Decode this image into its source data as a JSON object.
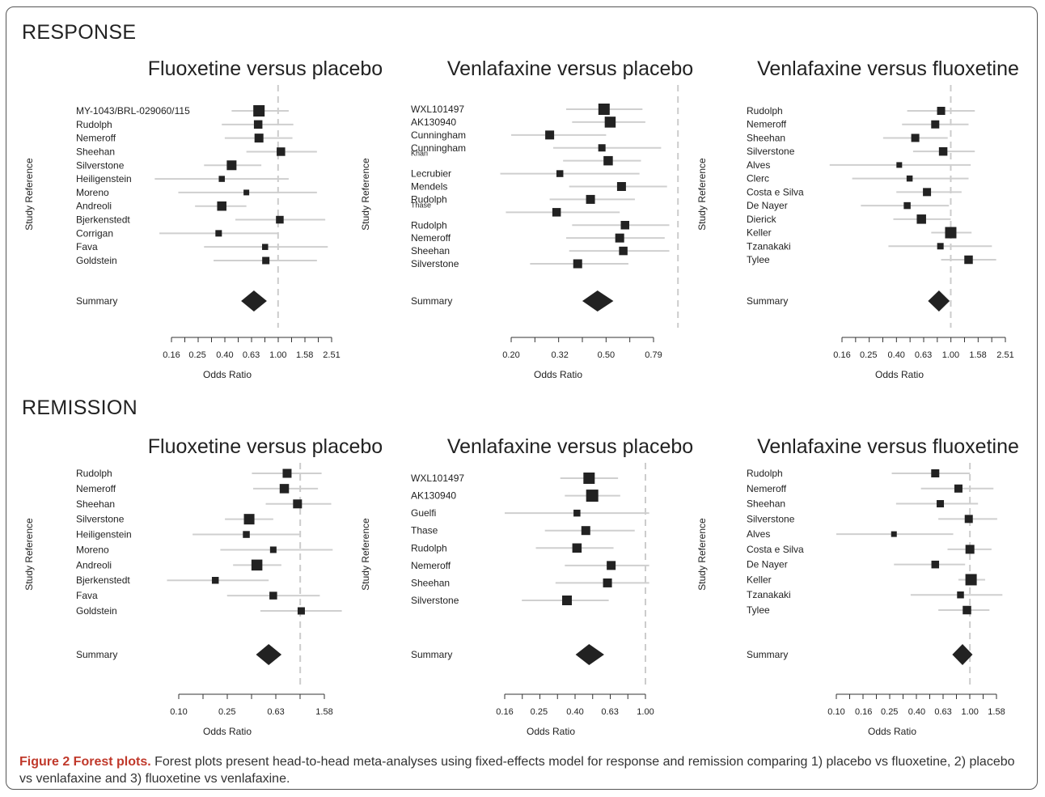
{
  "sections": [
    {
      "title": "RESPONSE"
    },
    {
      "title": "REMISSION"
    }
  ],
  "caption": {
    "label": "Figure 2 Forest plots.",
    "text": " Forest plots present head-to-head meta-analyses using fixed-effects model for response and remission comparing 1) placebo vs fluoxetine, 2) placebo vs venlafaxine and 3) fluoxetine vs venlafaxine."
  },
  "colors": {
    "marker": "#222222",
    "ci_line": "#cfcfcf",
    "ref_line": "#cccccc",
    "text": "#222222"
  },
  "chart_data": [
    {
      "type": "forest",
      "section": "RESPONSE",
      "title": "Fluoxetine versus placebo",
      "ylabel": "Study Reference",
      "xlabel": "Odds Ratio",
      "scale": "log",
      "x_ticks": [
        "0.16",
        "0.25",
        "0.40",
        "0.63",
        "1.00",
        "1.58",
        "2.51"
      ],
      "studies": [
        {
          "label": "MY-1043/BRL-029060/115",
          "or": 0.72,
          "lo": 0.45,
          "hi": 1.2,
          "weight": 1.0
        },
        {
          "label": "Rudolph",
          "or": 0.71,
          "lo": 0.38,
          "hi": 1.3,
          "weight": 0.65
        },
        {
          "label": "Nemeroff",
          "or": 0.72,
          "lo": 0.4,
          "hi": 1.28,
          "weight": 0.7
        },
        {
          "label": "Sheehan",
          "or": 1.05,
          "lo": 0.58,
          "hi": 1.95,
          "weight": 0.65
        },
        {
          "label": "Silverstone",
          "or": 0.45,
          "lo": 0.28,
          "hi": 0.75,
          "weight": 0.8
        },
        {
          "label": "Heiligenstein",
          "or": 0.38,
          "lo": 0.12,
          "hi": 1.2,
          "weight": 0.35
        },
        {
          "label": "Moreno",
          "or": 0.58,
          "lo": 0.18,
          "hi": 1.95,
          "weight": 0.3
        },
        {
          "label": "Andreoli",
          "or": 0.38,
          "lo": 0.24,
          "hi": 0.58,
          "weight": 0.75
        },
        {
          "label": "Bjerkenstedt",
          "or": 1.03,
          "lo": 0.48,
          "hi": 2.25,
          "weight": 0.55
        },
        {
          "label": "Corrigan",
          "or": 0.36,
          "lo": 0.13,
          "hi": 1.0,
          "weight": 0.4
        },
        {
          "label": "Fava",
          "or": 0.8,
          "lo": 0.28,
          "hi": 2.35,
          "weight": 0.35
        },
        {
          "label": "Goldstein",
          "or": 0.81,
          "lo": 0.33,
          "hi": 1.95,
          "weight": 0.5
        }
      ],
      "summary": {
        "label": "Summary",
        "or": 0.66,
        "lo": 0.56,
        "hi": 0.78
      }
    },
    {
      "type": "forest",
      "section": "RESPONSE",
      "title": "Venlafaxine versus placebo",
      "ylabel": "Study Reference",
      "xlabel": "Odds Ratio",
      "scale": "log",
      "x_ticks": [
        "0.20",
        "0.32",
        "0.50",
        "0.79"
      ],
      "studies": [
        {
          "label": "WXL101497",
          "or": 0.49,
          "lo": 0.34,
          "hi": 0.71,
          "weight": 1.0
        },
        {
          "label": "AK130940",
          "or": 0.52,
          "lo": 0.36,
          "hi": 0.73,
          "weight": 0.95
        },
        {
          "label": "Cunningham",
          "or": 0.29,
          "lo": 0.2,
          "hi": 0.5,
          "weight": 0.7
        },
        {
          "label": "Cunningham",
          "or": 0.48,
          "lo": 0.3,
          "hi": 0.85,
          "weight": 0.5
        },
        {
          "label": "Khan",
          "or": 0.51,
          "lo": 0.33,
          "hi": 0.7,
          "weight": 0.75
        },
        {
          "label": "Lecrubier",
          "or": 0.32,
          "lo": 0.18,
          "hi": 0.69,
          "weight": 0.45
        },
        {
          "label": "Mendels",
          "or": 0.58,
          "lo": 0.35,
          "hi": 0.9,
          "weight": 0.7
        },
        {
          "label": "Rudolph",
          "or": 0.43,
          "lo": 0.29,
          "hi": 0.66,
          "weight": 0.7
        },
        {
          "label": "Thase",
          "or": 0.31,
          "lo": 0.19,
          "hi": 0.57,
          "weight": 0.65
        },
        {
          "label": "Rudolph",
          "or": 0.6,
          "lo": 0.36,
          "hi": 0.92,
          "weight": 0.65
        },
        {
          "label": "Nemeroff",
          "or": 0.57,
          "lo": 0.34,
          "hi": 0.88,
          "weight": 0.7
        },
        {
          "label": "Sheehan",
          "or": 0.59,
          "lo": 0.35,
          "hi": 0.92,
          "weight": 0.65
        },
        {
          "label": "Silverstone",
          "or": 0.38,
          "lo": 0.24,
          "hi": 0.62,
          "weight": 0.7
        }
      ],
      "summary": {
        "label": "Summary",
        "or": 0.46,
        "lo": 0.41,
        "hi": 0.52
      }
    },
    {
      "type": "forest",
      "section": "RESPONSE",
      "title": "Venlafaxine versus fluoxetine",
      "ylabel": "Study Reference",
      "xlabel": "Odds Ratio",
      "scale": "log",
      "x_ticks": [
        "0.16",
        "0.25",
        "0.40",
        "0.63",
        "1.00",
        "1.58",
        "2.51"
      ],
      "studies": [
        {
          "label": "Rudolph",
          "or": 0.85,
          "lo": 0.48,
          "hi": 1.5,
          "weight": 0.6
        },
        {
          "label": "Nemeroff",
          "or": 0.77,
          "lo": 0.44,
          "hi": 1.35,
          "weight": 0.6
        },
        {
          "label": "Sheehan",
          "or": 0.55,
          "lo": 0.32,
          "hi": 0.95,
          "weight": 0.6
        },
        {
          "label": "Silverstone",
          "or": 0.88,
          "lo": 0.53,
          "hi": 1.5,
          "weight": 0.65
        },
        {
          "label": "Alves",
          "or": 0.42,
          "lo": 0.13,
          "hi": 1.4,
          "weight": 0.3
        },
        {
          "label": "Clerc",
          "or": 0.5,
          "lo": 0.19,
          "hi": 1.35,
          "weight": 0.35
        },
        {
          "label": "Costa e Silva",
          "or": 0.67,
          "lo": 0.4,
          "hi": 1.2,
          "weight": 0.6
        },
        {
          "label": "De Nayer",
          "or": 0.48,
          "lo": 0.22,
          "hi": 0.97,
          "weight": 0.45
        },
        {
          "label": "Dierick",
          "or": 0.61,
          "lo": 0.38,
          "hi": 1.0,
          "weight": 0.75
        },
        {
          "label": "Keller",
          "or": 1.0,
          "lo": 0.72,
          "hi": 1.42,
          "weight": 1.0
        },
        {
          "label": "Tzanakaki",
          "or": 0.84,
          "lo": 0.35,
          "hi": 2.0,
          "weight": 0.4
        },
        {
          "label": "Tylee",
          "or": 1.35,
          "lo": 0.85,
          "hi": 2.15,
          "weight": 0.65
        }
      ],
      "summary": {
        "label": "Summary",
        "or": 0.82,
        "lo": 0.72,
        "hi": 0.93
      }
    },
    {
      "type": "forest",
      "section": "REMISSION",
      "title": "Fluoxetine versus placebo",
      "ylabel": "Study Reference",
      "xlabel": "Odds Ratio",
      "scale": "log",
      "x_ticks": [
        "0.10",
        "0.25",
        "0.63",
        "1.58"
      ],
      "studies": [
        {
          "label": "Rudolph",
          "or": 0.78,
          "lo": 0.4,
          "hi": 1.5,
          "weight": 0.7
        },
        {
          "label": "Nemeroff",
          "or": 0.74,
          "lo": 0.41,
          "hi": 1.4,
          "weight": 0.75
        },
        {
          "label": "Sheehan",
          "or": 0.95,
          "lo": 0.52,
          "hi": 1.8,
          "weight": 0.7
        },
        {
          "label": "Silverstone",
          "or": 0.38,
          "lo": 0.24,
          "hi": 0.6,
          "weight": 0.9
        },
        {
          "label": "Heiligenstein",
          "or": 0.36,
          "lo": 0.13,
          "hi": 1.0,
          "weight": 0.45
        },
        {
          "label": "Moreno",
          "or": 0.6,
          "lo": 0.22,
          "hi": 1.85,
          "weight": 0.4
        },
        {
          "label": "Andreoli",
          "or": 0.44,
          "lo": 0.28,
          "hi": 0.7,
          "weight": 0.95
        },
        {
          "label": "Bjerkenstedt",
          "or": 0.2,
          "lo": 0.08,
          "hi": 0.55,
          "weight": 0.45
        },
        {
          "label": "Fava",
          "or": 0.6,
          "lo": 0.25,
          "hi": 1.45,
          "weight": 0.55
        },
        {
          "label": "Goldstein",
          "or": 1.02,
          "lo": 0.47,
          "hi": 2.2,
          "weight": 0.5
        }
      ],
      "summary": {
        "label": "Summary",
        "or": 0.55,
        "lo": 0.46,
        "hi": 0.66
      }
    },
    {
      "type": "forest",
      "section": "REMISSION",
      "title": "Venlafaxine versus placebo",
      "ylabel": "Study Reference",
      "xlabel": "Odds Ratio",
      "scale": "log",
      "x_ticks": [
        "0.16",
        "0.25",
        "0.40",
        "0.63",
        "1.00"
      ],
      "studies": [
        {
          "label": "WXL101497",
          "or": 0.48,
          "lo": 0.33,
          "hi": 0.7,
          "weight": 1.0
        },
        {
          "label": "AK130940",
          "or": 0.5,
          "lo": 0.35,
          "hi": 0.72,
          "weight": 1.1
        },
        {
          "label": "Guelfi",
          "or": 0.41,
          "lo": 0.16,
          "hi": 1.05,
          "weight": 0.45
        },
        {
          "label": "Thase",
          "or": 0.46,
          "lo": 0.27,
          "hi": 0.87,
          "weight": 0.7
        },
        {
          "label": "Rudolph",
          "or": 0.41,
          "lo": 0.24,
          "hi": 0.66,
          "weight": 0.75
        },
        {
          "label": "Nemeroff",
          "or": 0.64,
          "lo": 0.35,
          "hi": 1.05,
          "weight": 0.7
        },
        {
          "label": "Sheehan",
          "or": 0.61,
          "lo": 0.31,
          "hi": 1.05,
          "weight": 0.7
        },
        {
          "label": "Silverstone",
          "or": 0.36,
          "lo": 0.2,
          "hi": 0.62,
          "weight": 0.8
        }
      ],
      "summary": {
        "label": "Summary",
        "or": 0.48,
        "lo": 0.42,
        "hi": 0.56
      }
    },
    {
      "type": "forest",
      "section": "REMISSION",
      "title": "Venlafaxine versus fluoxetine",
      "ylabel": "Study Reference",
      "xlabel": "Odds Ratio",
      "scale": "log",
      "x_ticks": [
        "0.10",
        "0.16",
        "0.25",
        "0.40",
        "0.63",
        "1.00",
        "1.58"
      ],
      "studies": [
        {
          "label": "Rudolph",
          "or": 0.55,
          "lo": 0.26,
          "hi": 1.0,
          "weight": 0.6
        },
        {
          "label": "Nemeroff",
          "or": 0.82,
          "lo": 0.43,
          "hi": 1.5,
          "weight": 0.6
        },
        {
          "label": "Sheehan",
          "or": 0.6,
          "lo": 0.28,
          "hi": 1.15,
          "weight": 0.5
        },
        {
          "label": "Silverstone",
          "or": 0.98,
          "lo": 0.58,
          "hi": 1.6,
          "weight": 0.6
        },
        {
          "label": "Alves",
          "or": 0.27,
          "lo": 0.1,
          "hi": 0.75,
          "weight": 0.3
        },
        {
          "label": "Costa e Silva",
          "or": 1.0,
          "lo": 0.68,
          "hi": 1.45,
          "weight": 0.7
        },
        {
          "label": "De Nayer",
          "or": 0.55,
          "lo": 0.27,
          "hi": 0.92,
          "weight": 0.55
        },
        {
          "label": "Keller",
          "or": 1.02,
          "lo": 0.82,
          "hi": 1.3,
          "weight": 1.0
        },
        {
          "label": "Tzanakaki",
          "or": 0.85,
          "lo": 0.36,
          "hi": 1.75,
          "weight": 0.45
        },
        {
          "label": "Tylee",
          "or": 0.95,
          "lo": 0.58,
          "hi": 1.4,
          "weight": 0.65
        }
      ],
      "summary": {
        "label": "Summary",
        "or": 0.88,
        "lo": 0.78,
        "hi": 0.99
      }
    }
  ]
}
